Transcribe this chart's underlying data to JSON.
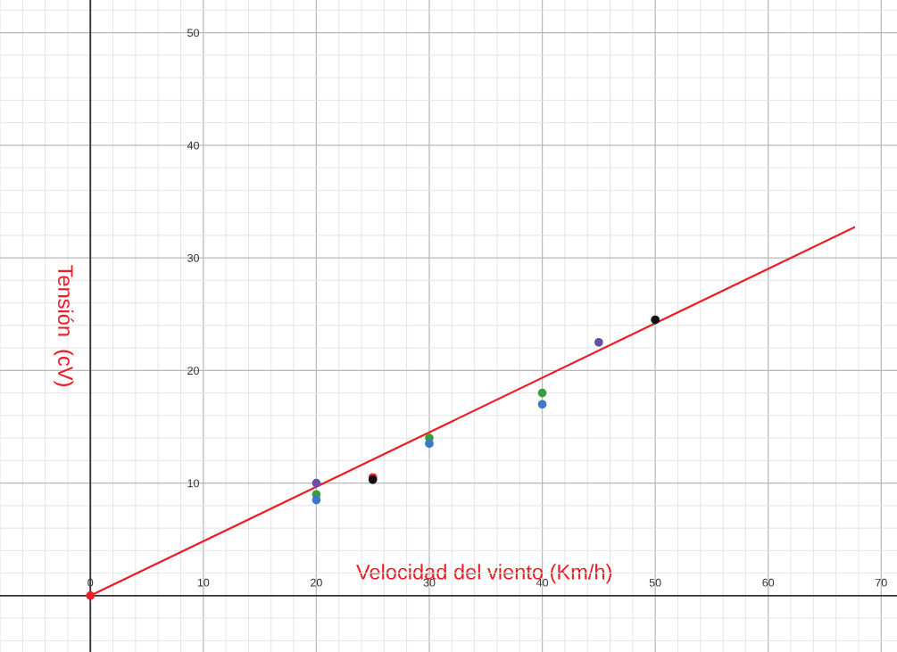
{
  "chart_data": {
    "type": "scatter",
    "xlabel": "Velocidad del viento (Km/h)",
    "ylabel": "Tensión  (cV)",
    "xlim": [
      -8,
      71.4
    ],
    "ylim": [
      -5,
      52.9
    ],
    "xticks": [
      0,
      10,
      20,
      30,
      40,
      50,
      60,
      70
    ],
    "yticks": [
      10,
      20,
      30,
      40,
      50
    ],
    "grid": true,
    "marker": "circle",
    "series": [
      {
        "type": "line",
        "color": "#ee1c25",
        "x": [
          0,
          67.6
        ],
        "values": [
          0,
          32.7
        ],
        "marker": "none"
      },
      {
        "color": "#ee1c25",
        "x": [
          0,
          25
        ],
        "values": [
          0,
          10.5
        ]
      },
      {
        "color": "#111111",
        "x": [
          25,
          50
        ],
        "values": [
          10.3,
          24.5
        ]
      },
      {
        "color": "#6650a8",
        "x": [
          20,
          45
        ],
        "values": [
          10,
          22.5
        ]
      },
      {
        "color": "#3c9b3c",
        "x": [
          20,
          30,
          40
        ],
        "values": [
          9,
          14,
          18
        ]
      },
      {
        "color": "#3f78c8",
        "x": [
          20,
          30,
          40
        ],
        "values": [
          8.5,
          13.5,
          17
        ]
      }
    ]
  }
}
